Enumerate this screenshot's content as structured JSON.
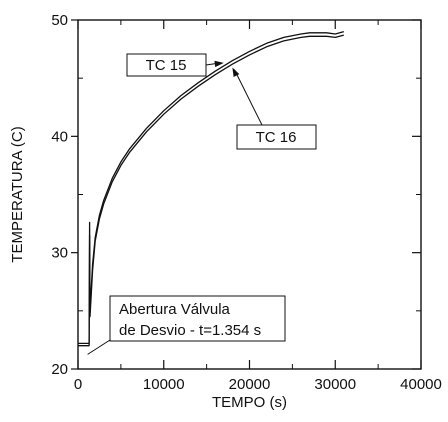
{
  "chart_data": {
    "type": "line",
    "xlabel": "TEMPO  (s)",
    "ylabel": "TEMPERATURA (C)",
    "xlim": [
      0,
      40000
    ],
    "ylim": [
      20,
      50
    ],
    "x_ticks": [
      "0",
      "10000",
      "20000",
      "30000",
      "40000"
    ],
    "y_ticks": [
      "20",
      "30",
      "40",
      "50"
    ],
    "grid": false,
    "series": [
      {
        "name": "TC 15",
        "x": [
          0,
          1300,
          1350,
          1400,
          1700,
          2000,
          2500,
          3000,
          4000,
          5000,
          6000,
          8000,
          10000,
          12000,
          14000,
          16000,
          18000,
          20000,
          22000,
          24000,
          26000,
          27000,
          28000,
          29000,
          30000,
          31000
        ],
        "y": [
          22.2,
          22.2,
          32.6,
          25.0,
          29.0,
          31.3,
          33.2,
          34.5,
          36.4,
          37.8,
          38.9,
          40.7,
          42.2,
          43.5,
          44.6,
          45.6,
          46.5,
          47.3,
          48.0,
          48.5,
          48.8,
          48.9,
          48.9,
          48.9,
          48.8,
          49.0
        ]
      },
      {
        "name": "TC 16",
        "x": [
          0,
          1300,
          1350,
          1400,
          1700,
          2000,
          2500,
          3000,
          4000,
          5000,
          6000,
          8000,
          10000,
          12000,
          14000,
          16000,
          18000,
          20000,
          22000,
          24000,
          26000,
          27000,
          28000,
          29000,
          30000,
          31000
        ],
        "y": [
          22.0,
          22.0,
          31.5,
          24.5,
          28.5,
          31.0,
          32.9,
          34.2,
          36.1,
          37.5,
          38.6,
          40.4,
          41.9,
          43.2,
          44.3,
          45.3,
          46.2,
          47.0,
          47.7,
          48.2,
          48.5,
          48.6,
          48.6,
          48.6,
          48.5,
          48.7
        ]
      }
    ],
    "annotations": [
      {
        "label": "TC 15",
        "points_to": [
          17000,
          46.4
        ]
      },
      {
        "label": "TC 16",
        "points_to": [
          18000,
          46.0
        ]
      },
      {
        "label_lines": [
          "Abertura Válvula",
          "de Desvio - t=1.354 s"
        ],
        "points_to": [
          1354,
          21.0
        ]
      }
    ]
  }
}
